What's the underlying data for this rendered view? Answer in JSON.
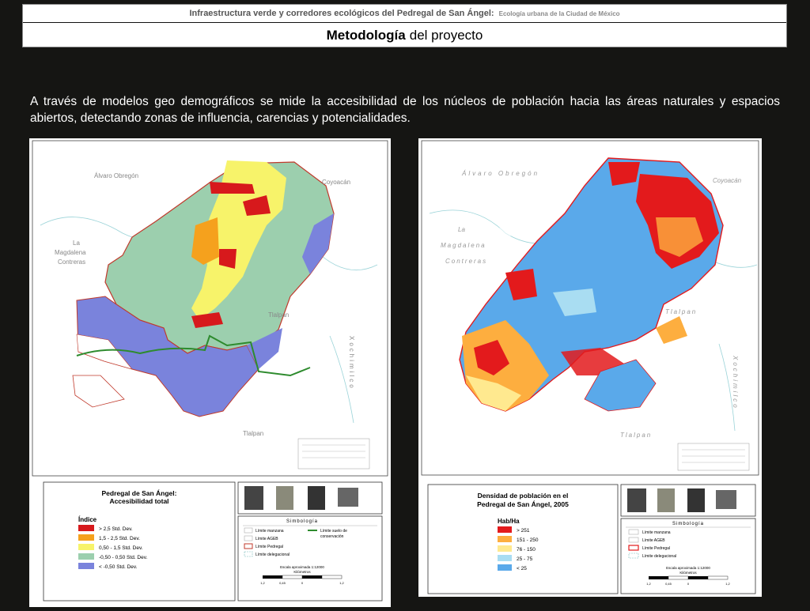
{
  "header": {
    "title": "Infraestructura verde y corredores ecológicos del Pedregal de San Ángel:",
    "subtitle": "Ecología urbana de la Ciudad de México",
    "heading_bold": "Metodología",
    "heading_rest": "del proyecto"
  },
  "intro_text": "A través de modelos geo demográficos se mide la accesibilidad de los núcleos de población hacia las áreas naturales y espacios abiertos, detectando zonas de influencia, carencias y potencialidades.",
  "map1": {
    "places": [
      "Álvaro Obregón",
      "Coyoacán",
      "La",
      "Magdalena",
      "Contreras",
      "Tlalpan",
      "Xochimilco",
      "Tlalpan"
    ],
    "title_line1": "Pedregal de San Ángel:",
    "title_line2": "Accesibilidad total",
    "legend_title": "Índice",
    "legend": [
      {
        "label": "> 2,5 Std. Dev.",
        "color": "#d7191c"
      },
      {
        "label": "1,5 - 2,5 Std. Dev.",
        "color": "#f5a11d"
      },
      {
        "label": "0,50 - 1,5 Std. Dev.",
        "color": "#f7f36a"
      },
      {
        "label": "-0,50 - 0,50 Std. Dev.",
        "color": "#9ccfae"
      },
      {
        "label": "< -0,50 Std. Dev.",
        "color": "#7a83dc"
      }
    ],
    "simbologia_title": "Simbología",
    "simbologia": [
      "Límite manzana",
      "Límite AGEB",
      "Límite Pedregal",
      "Límite delegacional"
    ],
    "simbologia_extra": [
      "Límite suelo de",
      "conservación"
    ],
    "scale_label": "Escala aproximada 1:12000",
    "scale_unit": "Kilómetros",
    "scale_ticks": [
      "1,2",
      "0,45",
      "0",
      "1,2"
    ]
  },
  "map2": {
    "places": [
      "Álvaro Obregón",
      "Coyoacán",
      "La",
      "Magdalena",
      "Contreras",
      "Tlalpan",
      "Xochimilco",
      "Tlalpan"
    ],
    "title_line1": "Densidad de población en el",
    "title_line2": "Pedregal de San Ángel, 2005",
    "legend_title": "Hab/Ha",
    "legend": [
      {
        "label": "> 251",
        "color": "#e31a1c"
      },
      {
        "label": "151 - 250",
        "color": "#fdae3f"
      },
      {
        "label": "76 - 150",
        "color": "#ffe98f"
      },
      {
        "label": "25 - 75",
        "color": "#a9ddf2"
      },
      {
        "label": "< 25",
        "color": "#5aa9ea"
      }
    ],
    "simbologia_title": "Simbología",
    "simbologia": [
      "Límite manzana",
      "Límite AGEB",
      "Límite Pedregal",
      "Límite delegacional"
    ],
    "scale_label": "Escala aproximada 1:12000",
    "scale_unit": "Kilómetros",
    "scale_ticks": [
      "1,2",
      "0,45",
      "0",
      "1,2"
    ]
  }
}
